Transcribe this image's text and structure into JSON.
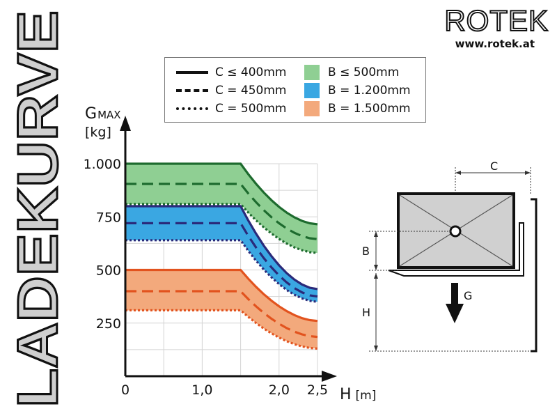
{
  "page_title": "LADEKURVE",
  "logo": {
    "brand": "ROTEK",
    "url": "www.rotek.at"
  },
  "legend": {
    "lines": [
      {
        "label": "C ≤ 400mm",
        "style": "solid"
      },
      {
        "label": "C = 450mm",
        "style": "dashed"
      },
      {
        "label": "C = 500mm",
        "style": "dotted"
      }
    ],
    "bands": [
      {
        "label": "B ≤ 500mm",
        "color": "#8fcf93"
      },
      {
        "label": "B = 1.200mm",
        "color": "#3aa7e2"
      },
      {
        "label": "B = 1.500mm",
        "color": "#f3a97c"
      }
    ]
  },
  "chart_data": {
    "type": "line",
    "ylabel": "GMAX",
    "ylabel_main": "G",
    "ylabel_sub": "MAX",
    "yunit": "[kg]",
    "xlabel": "H",
    "xunit": "[m]",
    "xlim": [
      0,
      2.5
    ],
    "ylim": [
      0,
      1000
    ],
    "x_ticks": [
      {
        "value": 0,
        "label": "0"
      },
      {
        "value": 1.0,
        "label": "1,0"
      },
      {
        "value": 2.0,
        "label": "2,0"
      },
      {
        "value": 2.5,
        "label": "2,5"
      }
    ],
    "y_ticks": [
      {
        "value": 250,
        "label": "250"
      },
      {
        "value": 500,
        "label": "500"
      },
      {
        "value": 750,
        "label": "750"
      },
      {
        "value": 1000,
        "label": "1.000"
      }
    ],
    "grid": true,
    "groups": [
      {
        "band": "B ≤ 500mm",
        "fill": "#8fcf93",
        "stroke": "#1d6b2e",
        "series": [
          {
            "name": "C ≤ 400mm",
            "style": "solid",
            "plateau": 1000,
            "end": 715
          },
          {
            "name": "C = 450mm",
            "style": "dashed",
            "plateau": 905,
            "end": 645
          },
          {
            "name": "C = 500mm",
            "style": "dotted",
            "plateau": 810,
            "end": 580
          }
        ]
      },
      {
        "band": "B = 1.200mm",
        "fill": "#3aa7e2",
        "stroke": "#2a2a7a",
        "series": [
          {
            "name": "C ≤ 400mm",
            "style": "solid",
            "plateau": 800,
            "end": 410
          },
          {
            "name": "C = 450mm",
            "style": "dashed",
            "plateau": 720,
            "end": 375
          },
          {
            "name": "C = 500mm",
            "style": "dotted",
            "plateau": 640,
            "end": 350
          }
        ]
      },
      {
        "band": "B = 1.500mm",
        "fill": "#f3a97c",
        "stroke": "#e2531e",
        "series": [
          {
            "name": "C ≤ 400mm",
            "style": "solid",
            "plateau": 500,
            "end": 260
          },
          {
            "name": "C = 450mm",
            "style": "dashed",
            "plateau": 400,
            "end": 185
          },
          {
            "name": "C = 500mm",
            "style": "dotted",
            "plateau": 310,
            "end": 130
          }
        ]
      }
    ],
    "knee_x": 1.5,
    "curve_x": [
      1.5,
      1.6,
      1.7,
      1.8,
      1.9,
      2.0,
      2.1,
      2.2,
      2.3,
      2.4,
      2.5
    ]
  },
  "diagram": {
    "label_c": "C",
    "label_b": "B",
    "label_h": "H",
    "label_g": "G"
  }
}
